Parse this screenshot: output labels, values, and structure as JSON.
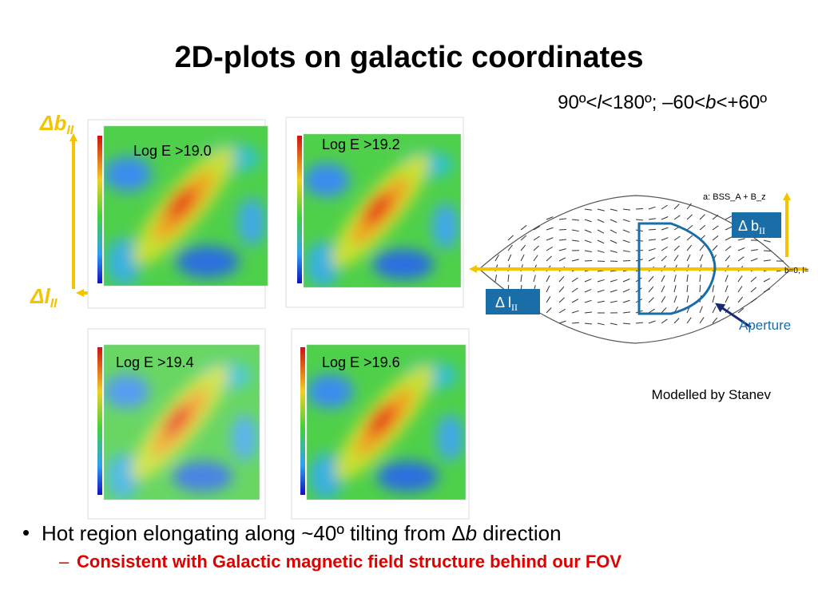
{
  "title": "2D-plots on galactic coordinates",
  "range": {
    "parts": [
      "90º<",
      "l",
      "<180º; –60<",
      "b",
      "<+60º"
    ]
  },
  "axes": {
    "b_label": "Δb",
    "b_sub": "II",
    "l_label": "Δl",
    "l_sub": "II"
  },
  "panels": [
    {
      "label": "Log E >19.0"
    },
    {
      "label": "Log E >19.2"
    },
    {
      "label": "Log E >19.4"
    },
    {
      "label": "Log E >19.6"
    }
  ],
  "model": {
    "map_label": "a:  BSS_A + B_z",
    "b_box": "Δ b",
    "b_box_sub": "II",
    "l_box": "Δ l",
    "l_box_sub": "II",
    "plane_label": "b=0, l=",
    "aperture": "Aperture",
    "caption": "Modelled by Stanev"
  },
  "bullets": [
    {
      "parts": [
        "Hot region elongating along ~40º tilting from Δ",
        "b",
        " direction"
      ]
    },
    {
      "text": "Consistent with Galactic magnetic field structure behind our FOV"
    }
  ]
}
